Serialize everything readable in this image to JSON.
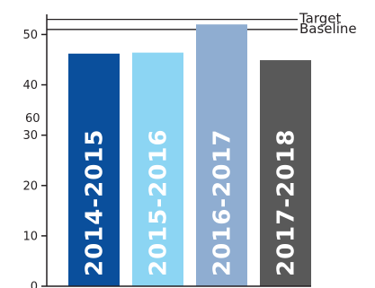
{
  "chart_data": {
    "type": "bar",
    "categories": [
      "2014-2015",
      "2015-2016",
      "2016-2017",
      "2017-2018"
    ],
    "values": [
      46.2,
      46.4,
      52.0,
      44.9
    ],
    "colors": [
      "#0a4f9c",
      "#8cd5f3",
      "#8fadd1",
      "#595959"
    ],
    "ylim": [
      0,
      54
    ],
    "yticks": [
      0,
      10,
      20,
      30,
      40,
      50
    ],
    "extra_tick_label": "60",
    "reference_lines": [
      {
        "label": "Target",
        "value": 53.0
      },
      {
        "label": "Baseline",
        "value": 51.0
      }
    ],
    "grid": false,
    "legend": "none"
  }
}
